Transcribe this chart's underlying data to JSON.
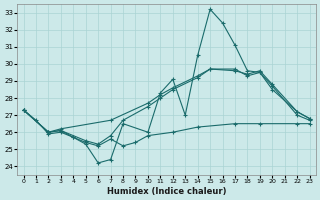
{
  "background_color": "#cce9e9",
  "grid_color": "#aad4d4",
  "line_color": "#1a6b6b",
  "xlabel": "Humidex (Indice chaleur)",
  "ylim": [
    23.5,
    33.5
  ],
  "xlim": [
    -0.5,
    23.5
  ],
  "yticks": [
    24,
    25,
    26,
    27,
    28,
    29,
    30,
    31,
    32,
    33
  ],
  "xticks": [
    0,
    1,
    2,
    3,
    4,
    5,
    6,
    7,
    8,
    9,
    10,
    11,
    12,
    13,
    14,
    15,
    16,
    17,
    18,
    19,
    20,
    21,
    22,
    23
  ],
  "lines": [
    {
      "x": [
        0,
        1,
        2,
        3,
        4,
        5,
        6,
        7,
        8,
        10,
        11,
        12,
        13,
        14,
        15,
        16,
        17,
        18,
        19,
        20,
        22,
        23
      ],
      "y": [
        27.3,
        26.7,
        25.9,
        26.0,
        25.7,
        25.3,
        24.2,
        24.4,
        26.5,
        26.0,
        28.3,
        29.1,
        27.0,
        30.5,
        33.2,
        32.4,
        31.1,
        29.6,
        29.5,
        28.5,
        27.2,
        26.8
      ]
    },
    {
      "x": [
        0,
        2,
        3,
        7,
        10,
        11,
        12,
        14,
        15,
        17,
        18,
        19,
        20,
        22,
        23
      ],
      "y": [
        27.3,
        26.0,
        26.2,
        26.7,
        27.7,
        28.2,
        28.6,
        29.3,
        29.7,
        29.6,
        29.4,
        29.6,
        28.8,
        27.2,
        26.8
      ]
    },
    {
      "x": [
        0,
        2,
        3,
        5,
        6,
        7,
        8,
        10,
        11,
        12,
        14,
        15,
        17,
        18,
        19,
        20,
        22,
        23
      ],
      "y": [
        27.3,
        26.0,
        26.1,
        25.5,
        25.3,
        25.8,
        26.7,
        27.5,
        28.0,
        28.5,
        29.2,
        29.7,
        29.7,
        29.3,
        29.5,
        28.7,
        27.0,
        26.7
      ]
    },
    {
      "x": [
        0,
        2,
        3,
        4,
        5,
        6,
        7,
        8,
        9,
        10,
        12,
        14,
        17,
        19,
        22,
        23
      ],
      "y": [
        27.3,
        26.0,
        26.1,
        25.7,
        25.4,
        25.2,
        25.6,
        25.2,
        25.4,
        25.8,
        26.0,
        26.3,
        26.5,
        26.5,
        26.5,
        26.5
      ]
    }
  ]
}
